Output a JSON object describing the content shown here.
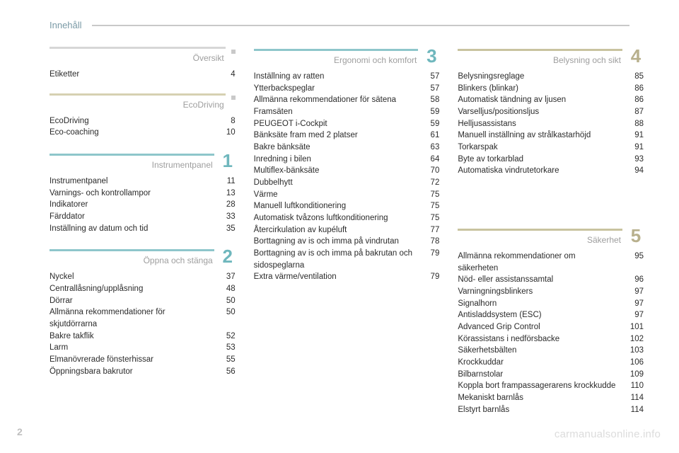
{
  "header": {
    "title": "Innehåll"
  },
  "page_number": "2",
  "watermark": "carmanualsonline.info",
  "colors": {
    "rule_gray": "#c9c9c9",
    "num_teal": "#6fb7bd",
    "num_olive": "#b8b08d",
    "rule_teal": "#8ec6cb",
    "rule_olive": "#c9c39f",
    "rule_light": "#d7d7d7",
    "rule_beige": "#d6d1b2"
  },
  "columns": [
    {
      "sections": [
        {
          "title": "Översikt",
          "marker": "dot",
          "rule_color": "#d7d7d7",
          "entries": [
            {
              "label": "Etiketter",
              "page": "4"
            }
          ]
        },
        {
          "title": "EcoDriving",
          "marker": "dot",
          "rule_color": "#d6d1b2",
          "entries": [
            {
              "label": "EcoDriving",
              "page": "8"
            },
            {
              "label": "Eco-coaching",
              "page": "10"
            }
          ]
        },
        {
          "title": "Instrumentpanel",
          "num": "1",
          "num_color": "#6fb7bd",
          "rule_color": "#8ec6cb",
          "entries": [
            {
              "label": "Instrumentpanel",
              "page": "11"
            },
            {
              "label": "Varnings- och kontrollampor",
              "page": "13"
            },
            {
              "label": "Indikatorer",
              "page": "28"
            },
            {
              "label": "Färddator",
              "page": "33"
            },
            {
              "label": "Inställning av datum och tid",
              "page": "35"
            }
          ]
        },
        {
          "title": "Öppna och stänga",
          "num": "2",
          "num_color": "#6fb7bd",
          "rule_color": "#8ec6cb",
          "entries": [
            {
              "label": "Nyckel",
              "page": "37"
            },
            {
              "label": "Centrallåsning/upplåsning",
              "page": "48"
            },
            {
              "label": "Dörrar",
              "page": "50"
            },
            {
              "label": "Allmänna rekommendationer för skjutdörrarna",
              "page": "50"
            },
            {
              "label": "Bakre takflik",
              "page": "52"
            },
            {
              "label": "Larm",
              "page": "53"
            },
            {
              "label": "Elmanövrerade fönsterhissar",
              "page": "55"
            },
            {
              "label": "Öppningsbara bakrutor",
              "page": "56"
            }
          ]
        }
      ]
    },
    {
      "sections": [
        {
          "title": "Ergonomi och komfort",
          "num": "3",
          "num_color": "#6fb7bd",
          "rule_color": "#8ec6cb",
          "entries": [
            {
              "label": "Inställning av ratten",
              "page": "57"
            },
            {
              "label": "Ytterbackspeglar",
              "page": "57"
            },
            {
              "label": "Allmänna rekommendationer för sätena",
              "page": "58"
            },
            {
              "label": "Framsäten",
              "page": "59"
            },
            {
              "label": "PEUGEOT i-Cockpit",
              "page": "59"
            },
            {
              "label": "Bänksäte fram med 2 platser",
              "page": "61"
            },
            {
              "label": "Bakre bänksäte",
              "page": "63"
            },
            {
              "label": "Inredning i bilen",
              "page": "64"
            },
            {
              "label": "Multiflex-bänksäte",
              "page": "70"
            },
            {
              "label": "Dubbelhytt",
              "page": "72"
            },
            {
              "label": "Värme",
              "page": "75"
            },
            {
              "label": "Manuell luftkonditionering",
              "page": "75"
            },
            {
              "label": "Automatisk tvåzons luftkonditionering",
              "page": "75"
            },
            {
              "label": "Återcirkulation av kupéluft",
              "page": "77"
            },
            {
              "label": "Borttagning av is och imma på vindrutan",
              "page": "78"
            },
            {
              "label": "Borttagning av is och imma på bakrutan och sidospeglarna",
              "page": "79"
            },
            {
              "label": "Extra värme/ventilation",
              "page": "79"
            }
          ]
        }
      ]
    },
    {
      "sections": [
        {
          "title": "Belysning och sikt",
          "num": "4",
          "num_color": "#b8b08d",
          "rule_color": "#c9c39f",
          "entries": [
            {
              "label": "Belysningsreglage",
              "page": "85"
            },
            {
              "label": "Blinkers (blinkar)",
              "page": "86"
            },
            {
              "label": "Automatisk tändning av ljusen",
              "page": "86"
            },
            {
              "label": "Varselljus/positionsljus",
              "page": "87"
            },
            {
              "label": "Helljusassistans",
              "page": "88"
            },
            {
              "label": "Manuell inställning av strålkastarhöjd",
              "page": "91"
            },
            {
              "label": "Torkarspak",
              "page": "91"
            },
            {
              "label": "Byte av torkarblad",
              "page": "93"
            },
            {
              "label": "Automatiska vindrutetorkare",
              "page": "94"
            }
          ]
        },
        {
          "title": "Säkerhet",
          "num": "5",
          "num_color": "#b8b08d",
          "rule_color": "#c9c39f",
          "top_gap": 70,
          "entries": [
            {
              "label": "Allmänna rekommendationer om säkerheten",
              "page": "95"
            },
            {
              "label": "Nöd- eller assistanssamtal",
              "page": "96"
            },
            {
              "label": "Varningningsblinkers",
              "page": "97"
            },
            {
              "label": "Signalhorn",
              "page": "97"
            },
            {
              "label": "Antisladdsystem (ESC)",
              "page": "97"
            },
            {
              "label": "Advanced Grip Control",
              "page": "101"
            },
            {
              "label": "Körassistans i nedförsbacke",
              "page": "102"
            },
            {
              "label": "Säkerhetsbälten",
              "page": "103"
            },
            {
              "label": "Krockkuddar",
              "page": "106"
            },
            {
              "label": "Bilbarnstolar",
              "page": "109"
            },
            {
              "label": "Koppla bort frampassagerarens krockkudde",
              "page": "110"
            },
            {
              "label": "Mekaniskt barnlås",
              "page": "114"
            },
            {
              "label": "Elstyrt barnlås",
              "page": "114"
            }
          ]
        }
      ]
    }
  ]
}
